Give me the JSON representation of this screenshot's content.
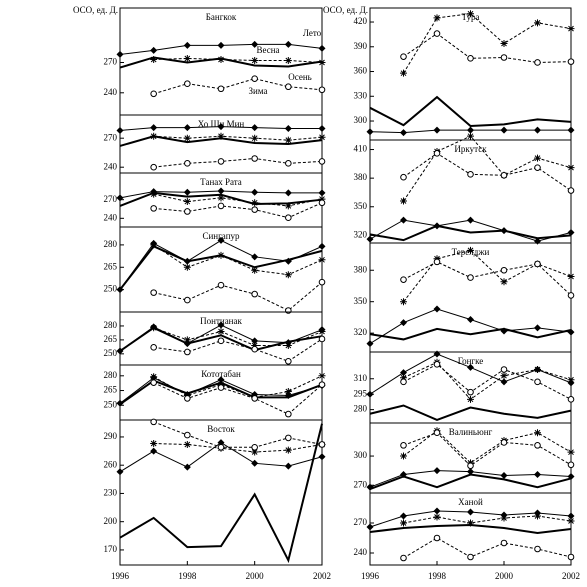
{
  "chart_data": [
    {
      "type": "line",
      "title": "Бангкок",
      "ylabel": "ОСО, ед. Д.",
      "x": [
        1996,
        1997,
        1998,
        1999,
        2000,
        2001,
        2002
      ],
      "xlim": [
        1996,
        2002
      ],
      "ylim": [
        218,
        324
      ],
      "yticks": [
        240,
        270
      ],
      "series": [
        {
          "name": "Лето",
          "marker": "diamond",
          "dashed": false,
          "color": "#000000",
          "values": [
            278,
            282,
            287,
            287,
            288,
            288,
            284
          ]
        },
        {
          "name": "Весна",
          "marker": "none",
          "dashed": false,
          "color": "#000000",
          "values": [
            265,
            275,
            270,
            274,
            267,
            266,
            271
          ]
        },
        {
          "name": "Осень",
          "marker": "asterisk",
          "dashed": true,
          "color": "#000000",
          "values": [
            null,
            273,
            274,
            273,
            272,
            272,
            270
          ]
        },
        {
          "name": "Зима",
          "marker": "circle",
          "dashed": true,
          "color": "#000000",
          "values": [
            null,
            239,
            249,
            244,
            254,
            246,
            243
          ]
        }
      ]
    },
    {
      "type": "line",
      "title": "Хо Ши Мин",
      "x": [
        1996,
        1997,
        1998,
        1999,
        2000,
        2001,
        2002
      ],
      "xlim": [
        1996,
        2002
      ],
      "ylim": [
        234,
        294
      ],
      "yticks": [
        240,
        270
      ],
      "series": [
        {
          "marker": "diamond",
          "dashed": false,
          "color": "#000000",
          "values": [
            278,
            281,
            281,
            282,
            281,
            280,
            280
          ]
        },
        {
          "marker": "none",
          "dashed": false,
          "color": "#000000",
          "values": [
            262,
            272,
            266,
            270,
            265,
            264,
            268
          ]
        },
        {
          "marker": "asterisk",
          "dashed": true,
          "color": "#000000",
          "values": [
            null,
            272,
            270,
            272,
            270,
            268,
            271
          ]
        },
        {
          "marker": "circle",
          "dashed": true,
          "color": "#000000",
          "values": [
            null,
            240,
            244,
            246,
            249,
            244,
            246
          ]
        }
      ]
    },
    {
      "type": "line",
      "title": "Танах Рата",
      "x": [
        1996,
        1997,
        1998,
        1999,
        2000,
        2001,
        2002
      ],
      "xlim": [
        1996,
        2002
      ],
      "ylim": [
        226,
        313
      ],
      "yticks": [
        240,
        270
      ],
      "series": [
        {
          "marker": "diamond",
          "dashed": false,
          "color": "#000000",
          "values": [
            273,
            283,
            282,
            284,
            282,
            281,
            281
          ]
        },
        {
          "marker": "none",
          "dashed": false,
          "color": "#000000",
          "values": [
            260,
            281,
            275,
            278,
            263,
            264,
            270
          ]
        },
        {
          "marker": "asterisk",
          "dashed": true,
          "color": "#000000",
          "values": [
            null,
            279,
            267,
            273,
            265,
            260,
            271
          ]
        },
        {
          "marker": "circle",
          "dashed": true,
          "color": "#000000",
          "values": [
            null,
            256,
            251,
            260,
            254,
            241,
            265
          ]
        }
      ]
    },
    {
      "type": "line",
      "title": "Сингапур",
      "x": [
        1996,
        1997,
        1998,
        1999,
        2000,
        2001,
        2002
      ],
      "xlim": [
        1996,
        2002
      ],
      "ylim": [
        235,
        292
      ],
      "yticks": [
        250,
        265,
        280
      ],
      "series": [
        {
          "marker": "diamond",
          "dashed": false,
          "color": "#000000",
          "values": [
            250,
            281,
            269,
            283,
            272,
            269,
            279
          ]
        },
        {
          "marker": "none",
          "dashed": false,
          "color": "#000000",
          "values": [
            250,
            279,
            269,
            273,
            265,
            270,
            276
          ]
        },
        {
          "marker": "asterisk",
          "dashed": true,
          "color": "#000000",
          "values": [
            null,
            280,
            265,
            273,
            263,
            260,
            270
          ]
        },
        {
          "marker": "circle",
          "dashed": true,
          "color": "#000000",
          "values": [
            null,
            248,
            243,
            253,
            247,
            236,
            255
          ]
        }
      ]
    },
    {
      "type": "line",
      "title": "Понтианак",
      "x": [
        1996,
        1997,
        1998,
        1999,
        2000,
        2001,
        2002
      ],
      "xlim": [
        1996,
        2002
      ],
      "ylim": [
        238,
        295
      ],
      "yticks": [
        250,
        265,
        280
      ],
      "series": [
        {
          "marker": "diamond",
          "dashed": false,
          "color": "#000000",
          "values": [
            253,
            279,
            261,
            281,
            264,
            262,
            276
          ]
        },
        {
          "marker": "none",
          "dashed": false,
          "color": "#000000",
          "values": [
            253,
            278,
            261,
            270,
            254,
            263,
            269
          ]
        },
        {
          "marker": "asterisk",
          "dashed": true,
          "color": "#000000",
          "values": [
            null,
            278,
            265,
            274,
            259,
            259,
            274
          ]
        },
        {
          "marker": "circle",
          "dashed": true,
          "color": "#000000",
          "values": [
            null,
            257,
            252,
            264,
            255,
            242,
            266
          ]
        }
      ]
    },
    {
      "type": "line",
      "title": "Кототабан",
      "x": [
        1996,
        1997,
        1998,
        1999,
        2000,
        2001,
        2002
      ],
      "xlim": [
        1996,
        2002
      ],
      "ylim": [
        235,
        291
      ],
      "yticks": [
        250,
        265,
        280
      ],
      "series": [
        {
          "marker": "diamond",
          "dashed": false,
          "color": "#000000",
          "values": [
            252,
            278,
            261,
            276,
            261,
            260,
            270
          ]
        },
        {
          "marker": "none",
          "dashed": false,
          "color": "#000000",
          "values": [
            251,
            275,
            262,
            273,
            258,
            258,
            271
          ]
        },
        {
          "marker": "asterisk",
          "dashed": true,
          "color": "#000000",
          "values": [
            null,
            279,
            260,
            271,
            258,
            264,
            280
          ]
        },
        {
          "marker": "circle",
          "dashed": true,
          "color": "#000000",
          "values": [
            null,
            273,
            257,
            268,
            257,
            241,
            271
          ]
        }
      ]
    },
    {
      "type": "line",
      "title": "Восток",
      "x": [
        1996,
        1997,
        1998,
        1999,
        2000,
        2001,
        2002
      ],
      "xlim": [
        1996,
        2002
      ],
      "ylim": [
        154,
        308
      ],
      "yticks": [
        170,
        200,
        230,
        260,
        290
      ],
      "xticks": [
        1996,
        1998,
        2000,
        2002
      ],
      "series": [
        {
          "marker": "diamond",
          "dashed": false,
          "color": "#000000",
          "values": [
            253,
            275,
            258,
            284,
            262,
            259,
            269
          ]
        },
        {
          "marker": "none",
          "dashed": false,
          "color": "#000000",
          "values": [
            183,
            204,
            173,
            174,
            229,
            159,
            304
          ]
        },
        {
          "marker": "asterisk",
          "dashed": true,
          "color": "#000000",
          "values": [
            null,
            283,
            282,
            278,
            274,
            276,
            282
          ]
        },
        {
          "marker": "circle",
          "dashed": true,
          "color": "#000000",
          "values": [
            null,
            306,
            292,
            279,
            279,
            289,
            282
          ]
        }
      ]
    },
    {
      "type": "line",
      "title": "Тура",
      "ylabel": "ОСО, ед. Д.",
      "x": [
        1996,
        1997,
        1998,
        1999,
        2000,
        2001,
        2002
      ],
      "xlim": [
        1996,
        2002
      ],
      "ylim": [
        277,
        437
      ],
      "yticks": [
        300,
        330,
        360,
        390,
        420
      ],
      "series": [
        {
          "marker": "diamond",
          "dashed": false,
          "color": "#000000",
          "values": [
            287,
            286,
            289,
            289,
            289,
            289,
            289
          ]
        },
        {
          "marker": "none",
          "dashed": false,
          "color": "#000000",
          "values": [
            316,
            295,
            329,
            294,
            296,
            302,
            299
          ]
        },
        {
          "marker": "asterisk",
          "dashed": true,
          "color": "#000000",
          "values": [
            null,
            358,
            425,
            430,
            394,
            419,
            412
          ]
        },
        {
          "marker": "circle",
          "dashed": true,
          "color": "#000000",
          "values": [
            null,
            378,
            406,
            376,
            377,
            371,
            372
          ]
        }
      ]
    },
    {
      "type": "line",
      "title": "Иркутск",
      "x": [
        1996,
        1997,
        1998,
        1999,
        2000,
        2001,
        2002
      ],
      "xlim": [
        1996,
        2002
      ],
      "ylim": [
        312,
        420
      ],
      "yticks": [
        320,
        350,
        380,
        410
      ],
      "series": [
        {
          "marker": "diamond",
          "dashed": false,
          "color": "#000000",
          "values": [
            316,
            336,
            330,
            336,
            325,
            314,
            323
          ]
        },
        {
          "marker": "none",
          "dashed": false,
          "color": "#000000",
          "values": [
            321,
            315,
            330,
            323,
            325,
            317,
            320
          ]
        },
        {
          "marker": "asterisk",
          "dashed": true,
          "color": "#000000",
          "values": [
            null,
            356,
            408,
            424,
            383,
            401,
            391
          ]
        },
        {
          "marker": "circle",
          "dashed": true,
          "color": "#000000",
          "values": [
            null,
            381,
            406,
            384,
            383,
            391,
            367
          ]
        }
      ]
    },
    {
      "type": "line",
      "title": "Терелджи",
      "x": [
        1996,
        1997,
        1998,
        1999,
        2000,
        2001,
        2002
      ],
      "xlim": [
        1996,
        2002
      ],
      "ylim": [
        302,
        406
      ],
      "yticks": [
        320,
        350,
        380
      ],
      "series": [
        {
          "marker": "diamond",
          "dashed": false,
          "color": "#000000",
          "values": [
            310,
            330,
            343,
            333,
            322,
            325,
            321
          ]
        },
        {
          "marker": "none",
          "dashed": false,
          "color": "#000000",
          "values": [
            319,
            314,
            324,
            319,
            324,
            316,
            323
          ]
        },
        {
          "marker": "asterisk",
          "dashed": true,
          "color": "#000000",
          "values": [
            null,
            350,
            391,
            399,
            369,
            386,
            374
          ]
        },
        {
          "marker": "circle",
          "dashed": true,
          "color": "#000000",
          "values": [
            null,
            371,
            388,
            373,
            380,
            386,
            356
          ]
        }
      ]
    },
    {
      "type": "line",
      "title": "Гонгке",
      "x": [
        1996,
        1997,
        1998,
        1999,
        2000,
        2001,
        2002
      ],
      "xlim": [
        1996,
        2002
      ],
      "ylim": [
        267,
        336
      ],
      "yticks": [
        280,
        295,
        310
      ],
      "series": [
        {
          "marker": "diamond",
          "dashed": false,
          "color": "#000000",
          "values": [
            295,
            316,
            334,
            321,
            307,
            319,
            306
          ]
        },
        {
          "marker": "none",
          "dashed": false,
          "color": "#000000",
          "values": [
            276,
            284,
            270,
            282,
            276,
            272,
            279
          ]
        },
        {
          "marker": "asterisk",
          "dashed": true,
          "color": "#000000",
          "values": [
            null,
            311,
            326,
            290,
            313,
            319,
            309
          ]
        },
        {
          "marker": "circle",
          "dashed": true,
          "color": "#000000",
          "values": [
            null,
            307,
            324,
            297,
            319,
            307,
            290
          ]
        }
      ]
    },
    {
      "type": "line",
      "title": "Валиньюнг",
      "x": [
        1996,
        1997,
        1998,
        1999,
        2000,
        2001,
        2002
      ],
      "xlim": [
        1996,
        2002
      ],
      "ylim": [
        262,
        334
      ],
      "yticks": [
        270,
        300
      ],
      "series": [
        {
          "marker": "diamond",
          "dashed": false,
          "color": "#000000",
          "values": [
            268,
            281,
            285,
            284,
            280,
            281,
            279
          ]
        },
        {
          "marker": "none",
          "dashed": false,
          "color": "#000000",
          "values": [
            266,
            279,
            268,
            281,
            276,
            268,
            277
          ]
        },
        {
          "marker": "asterisk",
          "dashed": true,
          "color": "#000000",
          "values": [
            null,
            300,
            326,
            293,
            316,
            324,
            304
          ]
        },
        {
          "marker": "circle",
          "dashed": true,
          "color": "#000000",
          "values": [
            null,
            311,
            324,
            290,
            314,
            311,
            291
          ]
        }
      ]
    },
    {
      "type": "line",
      "title": "Ханой",
      "x": [
        1996,
        1997,
        1998,
        1999,
        2000,
        2001,
        2002
      ],
      "xlim": [
        1996,
        2002
      ],
      "ylim": [
        228,
        300
      ],
      "yticks": [
        240,
        270
      ],
      "xticks": [
        1996,
        1998,
        2000,
        2002
      ],
      "series": [
        {
          "marker": "diamond",
          "dashed": false,
          "color": "#000000",
          "values": [
            266,
            277,
            282,
            281,
            278,
            280,
            277
          ]
        },
        {
          "marker": "none",
          "dashed": false,
          "color": "#000000",
          "values": [
            261,
            265,
            267,
            268,
            265,
            260,
            264
          ]
        },
        {
          "marker": "asterisk",
          "dashed": true,
          "color": "#000000",
          "values": [
            null,
            270,
            276,
            270,
            275,
            277,
            272
          ]
        },
        {
          "marker": "circle",
          "dashed": true,
          "color": "#000000",
          "values": [
            null,
            235,
            255,
            236,
            250,
            244,
            236
          ]
        }
      ]
    }
  ]
}
